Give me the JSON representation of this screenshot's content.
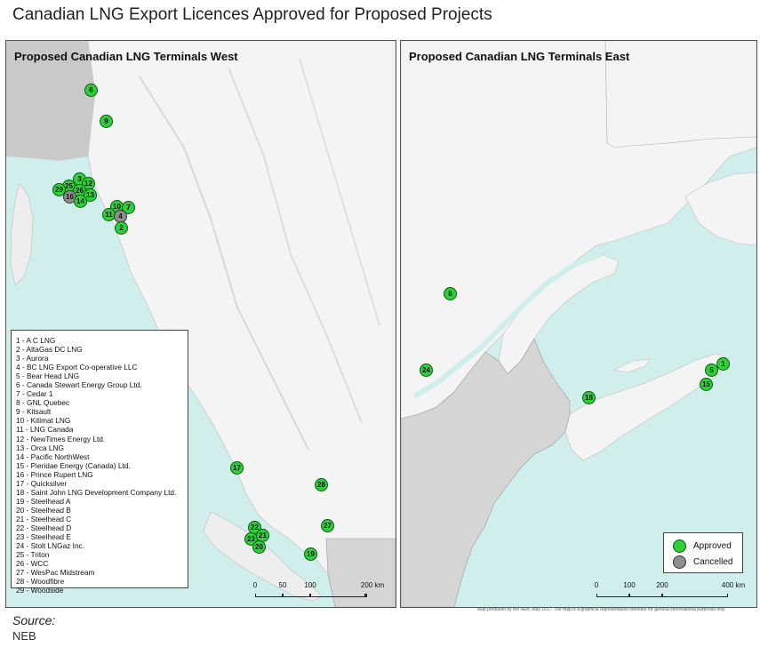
{
  "title": "Canadian LNG Export Licences Approved for Proposed Projects",
  "west": {
    "title": "Proposed Canadian LNG Terminals West",
    "markers": [
      {
        "label": "6",
        "status": "approved"
      },
      {
        "label": "9",
        "status": "approved"
      },
      {
        "label": "3",
        "status": "approved"
      },
      {
        "label": "25",
        "status": "approved"
      },
      {
        "label": "12",
        "status": "approved"
      },
      {
        "label": "29",
        "status": "approved"
      },
      {
        "label": "26",
        "status": "approved"
      },
      {
        "label": "16",
        "status": "cancelled"
      },
      {
        "label": "13",
        "status": "approved"
      },
      {
        "label": "14",
        "status": "approved"
      },
      {
        "label": "10",
        "status": "approved"
      },
      {
        "label": "7",
        "status": "approved"
      },
      {
        "label": "11",
        "status": "approved"
      },
      {
        "label": "4",
        "status": "cancelled"
      },
      {
        "label": "2",
        "status": "approved"
      },
      {
        "label": "17",
        "status": "approved"
      },
      {
        "label": "28",
        "status": "approved"
      },
      {
        "label": "27",
        "status": "approved"
      },
      {
        "label": "22",
        "status": "approved"
      },
      {
        "label": "23",
        "status": "approved"
      },
      {
        "label": "21",
        "status": "approved"
      },
      {
        "label": "20",
        "status": "approved"
      },
      {
        "label": "19",
        "status": "approved"
      }
    ],
    "list": [
      "1 - A C LNG",
      "2 - AltaGas DC LNG",
      "3 - Aurora",
      "4 - BC LNG Export Co-operative LLC",
      "5 - Bear Head LNG",
      "6 - Canada Stewart Energy Group Ltd.",
      "7 - Cedar 1",
      "8 - GNL Quebec",
      "9 - Kitsault",
      "10 - Kitimat LNG",
      "11 - LNG Canada",
      "12 - NewTimes Energy Ltd.",
      "13 - Orca LNG",
      "14 - Pacific NorthWest",
      "15 - Pieridae Energy (Canada) Ltd.",
      "16 - Prince Rupert LNG",
      "17 - Quicksilver",
      "18 - Saint John LNG Development Company Ltd.",
      "19 - Steelhead A",
      "20 - Steelhead B",
      "21 - Steelhead C",
      "22 - Steelhead D",
      "23 - Steelhead E",
      "24 - Stolt LNGaz Inc.",
      "25 - Triton",
      "26 - WCC",
      "27 - WesPac Midstream",
      "28 - Woodfibre",
      "29 - Woodside"
    ],
    "scale": {
      "ticks": [
        "0",
        "50",
        "100",
        "200 km"
      ]
    }
  },
  "east": {
    "title": "Proposed Canadian LNG Terminals East",
    "markers": [
      {
        "label": "8",
        "status": "approved"
      },
      {
        "label": "24",
        "status": "approved"
      },
      {
        "label": "18",
        "status": "approved"
      },
      {
        "label": "1",
        "status": "approved"
      },
      {
        "label": "5",
        "status": "approved"
      },
      {
        "label": "15",
        "status": "approved"
      }
    ],
    "scale": {
      "ticks": [
        "0",
        "100",
        "200",
        "400 km"
      ]
    },
    "legend": {
      "approved": "Approved",
      "cancelled": "Cancelled"
    },
    "colors": {
      "approved": "#2fcf3a",
      "cancelled": "#8f8f8f"
    }
  },
  "credit": "Map produced by the NEB, May 2017. The map is a graphical representation intended for general informational purposes only.",
  "source": {
    "label": "Source:",
    "value": "NEB"
  }
}
